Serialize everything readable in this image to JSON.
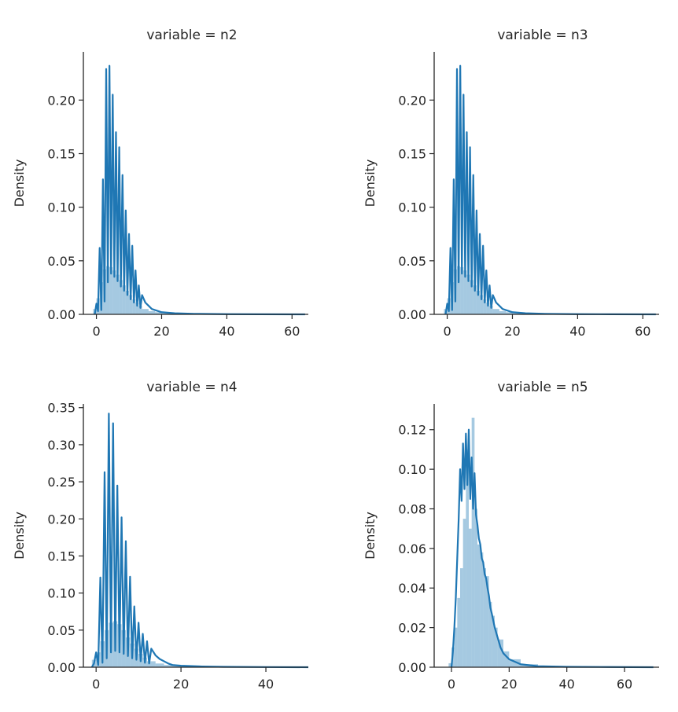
{
  "chart_data": [
    {
      "type": "histogram",
      "title": "variable = n2",
      "xlabel": "",
      "ylabel": "Density",
      "xlim": [
        -4,
        65
      ],
      "ylim": [
        0,
        0.245
      ],
      "xticks": [
        0,
        20,
        40,
        60
      ],
      "xtick_labels": [
        "0",
        "20",
        "40",
        "60"
      ],
      "yticks": [
        0.0,
        0.05,
        0.1,
        0.15,
        0.2
      ],
      "ytick_labels": [
        "0.00",
        "0.05",
        "0.10",
        "0.15",
        "0.20"
      ],
      "color": "#1f77b4",
      "hist": {
        "bin_edges": [
          -1,
          0,
          1,
          2,
          3,
          4,
          5,
          6,
          7,
          8,
          9,
          10,
          11,
          12,
          13,
          14,
          16,
          18,
          20,
          24,
          30,
          40,
          50,
          64
        ],
        "values": [
          0.005,
          0.015,
          0.03,
          0.042,
          0.045,
          0.044,
          0.041,
          0.037,
          0.032,
          0.027,
          0.022,
          0.018,
          0.014,
          0.011,
          0.008,
          0.005,
          0.003,
          0.002,
          0.001,
          0.0005,
          0.0002,
          0.0001,
          5e-05
        ]
      },
      "kde": {
        "x": [
          -0.5,
          0,
          0.5,
          1,
          1.5,
          2,
          2.5,
          3,
          3.5,
          4,
          4.5,
          5,
          5.5,
          6,
          6.5,
          7,
          7.5,
          8,
          8.5,
          9,
          9.5,
          10,
          10.5,
          11,
          11.5,
          12,
          12.5,
          13,
          13.5,
          14,
          15,
          16,
          17,
          18,
          20,
          24,
          30,
          40,
          50,
          64
        ],
        "y": [
          0.0,
          0.01,
          0.003,
          0.062,
          0.004,
          0.126,
          0.012,
          0.229,
          0.03,
          0.232,
          0.038,
          0.205,
          0.035,
          0.17,
          0.031,
          0.156,
          0.026,
          0.13,
          0.022,
          0.097,
          0.018,
          0.075,
          0.014,
          0.064,
          0.011,
          0.041,
          0.008,
          0.027,
          0.006,
          0.018,
          0.011,
          0.008,
          0.005,
          0.004,
          0.002,
          0.001,
          0.0005,
          0.0002,
          0.0001,
          0.0
        ]
      }
    },
    {
      "type": "histogram",
      "title": "variable = n3",
      "xlabel": "",
      "ylabel": "Density",
      "xlim": [
        -4,
        65
      ],
      "ylim": [
        0,
        0.245
      ],
      "xticks": [
        0,
        20,
        40,
        60
      ],
      "xtick_labels": [
        "0",
        "20",
        "40",
        "60"
      ],
      "yticks": [
        0.0,
        0.05,
        0.1,
        0.15,
        0.2
      ],
      "ytick_labels": [
        "0.00",
        "0.05",
        "0.10",
        "0.15",
        "0.20"
      ],
      "color": "#1f77b4",
      "hist": {
        "bin_edges": [
          -1,
          0,
          1,
          2,
          3,
          4,
          5,
          6,
          7,
          8,
          9,
          10,
          11,
          12,
          13,
          14,
          16,
          18,
          20,
          24,
          30,
          40,
          50,
          64
        ],
        "values": [
          0.005,
          0.015,
          0.03,
          0.042,
          0.045,
          0.044,
          0.041,
          0.037,
          0.032,
          0.027,
          0.022,
          0.018,
          0.014,
          0.011,
          0.008,
          0.005,
          0.003,
          0.002,
          0.001,
          0.0005,
          0.0002,
          0.0001,
          5e-05
        ]
      },
      "kde": {
        "x": [
          -0.5,
          0,
          0.5,
          1,
          1.5,
          2,
          2.5,
          3,
          3.5,
          4,
          4.5,
          5,
          5.5,
          6,
          6.5,
          7,
          7.5,
          8,
          8.5,
          9,
          9.5,
          10,
          10.5,
          11,
          11.5,
          12,
          12.5,
          13,
          13.5,
          14,
          15,
          16,
          17,
          18,
          20,
          24,
          30,
          40,
          50,
          64
        ],
        "y": [
          0.0,
          0.01,
          0.003,
          0.062,
          0.004,
          0.126,
          0.012,
          0.229,
          0.03,
          0.232,
          0.038,
          0.205,
          0.035,
          0.17,
          0.031,
          0.156,
          0.026,
          0.13,
          0.022,
          0.097,
          0.018,
          0.075,
          0.014,
          0.064,
          0.011,
          0.041,
          0.008,
          0.027,
          0.006,
          0.018,
          0.011,
          0.008,
          0.005,
          0.004,
          0.002,
          0.001,
          0.0005,
          0.0002,
          0.0001,
          0.0
        ]
      }
    },
    {
      "type": "histogram",
      "title": "variable = n4",
      "xlabel": "",
      "ylabel": "Density",
      "xlim": [
        -3,
        50
      ],
      "ylim": [
        0,
        0.355
      ],
      "xticks": [
        0,
        20,
        40
      ],
      "xtick_labels": [
        "0",
        "20",
        "40"
      ],
      "yticks": [
        0.0,
        0.05,
        0.1,
        0.15,
        0.2,
        0.25,
        0.3,
        0.35
      ],
      "ytick_labels": [
        "0.00",
        "0.05",
        "0.10",
        "0.15",
        "0.20",
        "0.25",
        "0.30",
        "0.35"
      ],
      "color": "#1f77b4",
      "hist": {
        "bin_edges": [
          -1,
          0,
          1,
          2,
          3,
          4,
          5,
          6,
          7,
          8,
          9,
          10,
          11,
          12,
          14,
          16,
          18,
          20,
          25,
          30,
          40,
          50
        ],
        "values": [
          0.01,
          0.02,
          0.035,
          0.05,
          0.06,
          0.062,
          0.058,
          0.05,
          0.04,
          0.032,
          0.025,
          0.018,
          0.013,
          0.008,
          0.005,
          0.003,
          0.002,
          0.001,
          0.0005,
          0.0002,
          0.0001
        ]
      },
      "kde": {
        "x": [
          -1,
          -0.5,
          0,
          0.5,
          1,
          1.5,
          2,
          2.5,
          3,
          3.5,
          4,
          4.5,
          5,
          5.5,
          6,
          6.5,
          7,
          7.5,
          8,
          8.5,
          9,
          9.5,
          10,
          10.5,
          11,
          11.5,
          12,
          12.5,
          13,
          14,
          15,
          16,
          17,
          18,
          20,
          25,
          30,
          40,
          50
        ],
        "y": [
          0.0,
          0.005,
          0.02,
          0.003,
          0.121,
          0.006,
          0.263,
          0.012,
          0.342,
          0.02,
          0.329,
          0.022,
          0.245,
          0.02,
          0.202,
          0.018,
          0.17,
          0.015,
          0.122,
          0.012,
          0.082,
          0.01,
          0.06,
          0.008,
          0.045,
          0.006,
          0.035,
          0.005,
          0.025,
          0.016,
          0.011,
          0.008,
          0.005,
          0.003,
          0.002,
          0.001,
          0.0005,
          0.0002,
          0.0
        ]
      }
    },
    {
      "type": "histogram",
      "title": "variable = n5",
      "xlabel": "",
      "ylabel": "Density",
      "xlim": [
        -6,
        72
      ],
      "ylim": [
        0,
        0.133
      ],
      "xticks": [
        0,
        20,
        40,
        60
      ],
      "xtick_labels": [
        "0",
        "20",
        "40",
        "60"
      ],
      "yticks": [
        0.0,
        0.02,
        0.04,
        0.06,
        0.08,
        0.1,
        0.12
      ],
      "ytick_labels": [
        "0.00",
        "0.02",
        "0.04",
        "0.06",
        "0.08",
        "0.10",
        "0.12"
      ],
      "color": "#1f77b4",
      "hist": {
        "bin_edges": [
          -1,
          0,
          1,
          2,
          3,
          4,
          5,
          6,
          7,
          8,
          9,
          10,
          11,
          12,
          13,
          14,
          15,
          16,
          18,
          20,
          24,
          30,
          40,
          55,
          70
        ],
        "values": [
          0.002,
          0.01,
          0.02,
          0.035,
          0.05,
          0.075,
          0.11,
          0.07,
          0.126,
          0.08,
          0.062,
          0.058,
          0.05,
          0.046,
          0.033,
          0.026,
          0.02,
          0.014,
          0.008,
          0.004,
          0.0015,
          0.0005,
          0.0002,
          0.0001
        ]
      },
      "kde": {
        "x": [
          0,
          0.5,
          1,
          1.5,
          2,
          2.5,
          3,
          3.5,
          4,
          4.5,
          5,
          5.5,
          6,
          6.5,
          7,
          7.5,
          8,
          8.5,
          9,
          9.5,
          10,
          10.5,
          11,
          11.5,
          12,
          12.5,
          13,
          13.5,
          14,
          15,
          16,
          17,
          18,
          20,
          24,
          30,
          40,
          55,
          70
        ],
        "y": [
          0.0,
          0.008,
          0.02,
          0.035,
          0.055,
          0.075,
          0.1,
          0.084,
          0.113,
          0.09,
          0.118,
          0.092,
          0.12,
          0.085,
          0.106,
          0.08,
          0.098,
          0.077,
          0.072,
          0.065,
          0.062,
          0.055,
          0.053,
          0.047,
          0.045,
          0.04,
          0.036,
          0.03,
          0.027,
          0.02,
          0.015,
          0.01,
          0.007,
          0.004,
          0.0015,
          0.0005,
          0.0002,
          0.0001,
          0.0
        ]
      }
    }
  ]
}
